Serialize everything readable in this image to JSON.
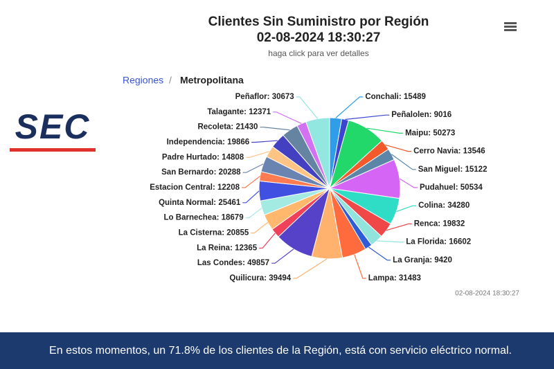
{
  "logo": "SEC",
  "breadcrumb": {
    "root": "Regiones",
    "separator": "/",
    "current": "Metropolitana"
  },
  "footer": "En estos momentos, un 71.8% de los clientes de la Región, está con servicio eléctrico normal.",
  "chart_data": {
    "type": "pie",
    "title": "Clientes Sin Suministro por Región",
    "subtitle": "02-08-2024 18:30:27",
    "caption": "haga click para ver detalles",
    "timestamp": "02-08-2024 18:30:27",
    "label_separator": ": ",
    "categories": [
      "Conchali",
      "Peñalolen",
      "Maipu",
      "Cerro Navia",
      "San Miguel",
      "Pudahuel",
      "Colina",
      "Renca",
      "La Florida",
      "La Granja",
      "Lampa",
      "Quilicura",
      "Las Condes",
      "La Reina",
      "La Cisterna",
      "Lo Barnechea",
      "Quinta Normal",
      "Estacion Central",
      "San Bernardo",
      "Padre Hurtado",
      "Independencia",
      "Recoleta",
      "Talagante",
      "Peñaflor"
    ],
    "values": [
      15489,
      9016,
      50273,
      13546,
      15122,
      50534,
      34280,
      19832,
      16602,
      9420,
      31483,
      39494,
      49857,
      12365,
      20855,
      18679,
      25461,
      12208,
      20288,
      14808,
      19866,
      21430,
      12371,
      30673
    ],
    "colors": [
      "#2f9de8",
      "#3b45d0",
      "#22d86a",
      "#f2592b",
      "#5b86a8",
      "#d465f5",
      "#2fdcc6",
      "#f04848",
      "#90e4dc",
      "#2f5bd6",
      "#ff6b3d",
      "#ffb26e",
      "#5542c8",
      "#f0405a",
      "#ffb86c",
      "#a2eae2",
      "#4050e0",
      "#ff7b52",
      "#6a84b2",
      "#ffc384",
      "#4340c2",
      "#6584a2",
      "#d272f2",
      "#92e8e0"
    ]
  }
}
